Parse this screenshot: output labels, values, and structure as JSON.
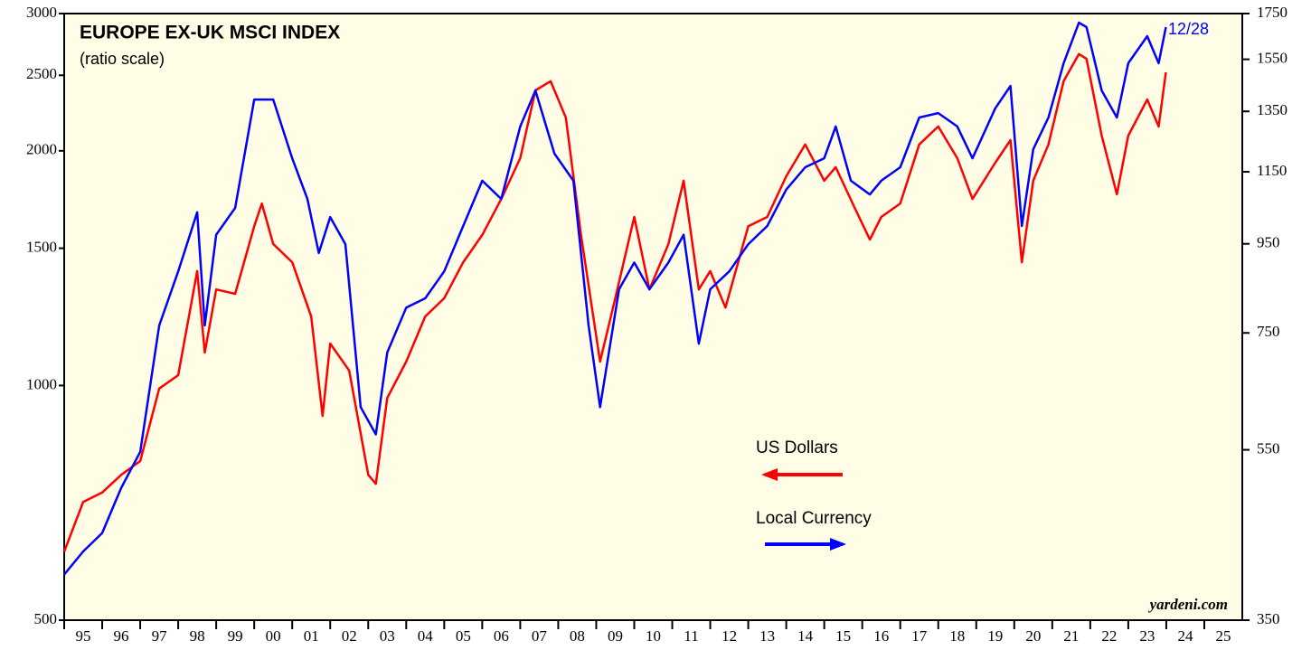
{
  "chart_data": {
    "type": "line",
    "title": "EUROPE EX-UK MSCI INDEX",
    "subtitle": "(ratio scale)",
    "annotation": "12/28",
    "source": "yardeni.com",
    "log_scale": true,
    "background": "#fffde6",
    "xlim": [
      1995,
      2026
    ],
    "xticks": [
      {
        "value": 1995,
        "label": "95"
      },
      {
        "value": 1996,
        "label": "96"
      },
      {
        "value": 1997,
        "label": "97"
      },
      {
        "value": 1998,
        "label": "98"
      },
      {
        "value": 1999,
        "label": "99"
      },
      {
        "value": 2000,
        "label": "00"
      },
      {
        "value": 2001,
        "label": "01"
      },
      {
        "value": 2002,
        "label": "02"
      },
      {
        "value": 2003,
        "label": "03"
      },
      {
        "value": 2004,
        "label": "04"
      },
      {
        "value": 2005,
        "label": "05"
      },
      {
        "value": 2006,
        "label": "06"
      },
      {
        "value": 2007,
        "label": "07"
      },
      {
        "value": 2008,
        "label": "08"
      },
      {
        "value": 2009,
        "label": "09"
      },
      {
        "value": 2010,
        "label": "10"
      },
      {
        "value": 2011,
        "label": "11"
      },
      {
        "value": 2012,
        "label": "12"
      },
      {
        "value": 2013,
        "label": "13"
      },
      {
        "value": 2014,
        "label": "14"
      },
      {
        "value": 2015,
        "label": "15"
      },
      {
        "value": 2016,
        "label": "16"
      },
      {
        "value": 2017,
        "label": "17"
      },
      {
        "value": 2018,
        "label": "18"
      },
      {
        "value": 2019,
        "label": "19"
      },
      {
        "value": 2020,
        "label": "20"
      },
      {
        "value": 2021,
        "label": "21"
      },
      {
        "value": 2022,
        "label": "22"
      },
      {
        "value": 2023,
        "label": "23"
      },
      {
        "value": 2024,
        "label": "24"
      },
      {
        "value": 2025,
        "label": "25"
      }
    ],
    "ylim": [
      500,
      3000
    ],
    "yticks": [
      500,
      1000,
      1500,
      2000,
      2500,
      3000
    ],
    "y2lim": [
      350,
      1750
    ],
    "y2ticks": [
      350,
      550,
      750,
      950,
      1150,
      1350,
      1550,
      1750
    ],
    "series": [
      {
        "name": "US Dollars",
        "color": "#ff0000",
        "x": [
          1995.0,
          1995.5,
          1996.0,
          1996.5,
          1997.0,
          1997.5,
          1998.0,
          1998.5,
          1998.7,
          1999.0,
          1999.5,
          2000.0,
          2000.2,
          2000.5,
          2001.0,
          2001.5,
          2001.8,
          2002.0,
          2002.5,
          2003.0,
          2003.2,
          2003.5,
          2004.0,
          2004.5,
          2005.0,
          2005.5,
          2006.0,
          2006.5,
          2007.0,
          2007.4,
          2007.8,
          2008.2,
          2008.6,
          2009.1,
          2009.5,
          2010.0,
          2010.4,
          2010.9,
          2011.3,
          2011.7,
          2012.0,
          2012.4,
          2013.0,
          2013.5,
          2014.0,
          2014.5,
          2015.0,
          2015.3,
          2015.8,
          2016.2,
          2016.5,
          2017.0,
          2017.5,
          2018.0,
          2018.5,
          2018.9,
          2019.5,
          2019.9,
          2020.2,
          2020.5,
          2020.9,
          2021.3,
          2021.7,
          2021.9,
          2022.3,
          2022.7,
          2023.0,
          2023.5,
          2023.8,
          2023.99
        ],
        "values": [
          612,
          709,
          729,
          768,
          800,
          991,
          1031,
          1402,
          1102,
          1328,
          1311,
          1601,
          1712,
          1519,
          1439,
          1226,
          914,
          1132,
          1045,
          768,
          748,
          964,
          1073,
          1226,
          1294,
          1439,
          1560,
          1735,
          1957,
          2391,
          2457,
          2207,
          1560,
          1073,
          1294,
          1645,
          1328,
          1519,
          1831,
          1328,
          1402,
          1259,
          1601,
          1645,
          1855,
          2038,
          1831,
          1906,
          1690,
          1539,
          1645,
          1712,
          2038,
          2149,
          1957,
          1735,
          1931,
          2064,
          1439,
          1831,
          2038,
          2457,
          2662,
          2624,
          2092,
          1759,
          2092,
          2327,
          2149,
          2522
        ]
      },
      {
        "name": "Local Currency",
        "color": "#0000ff",
        "axis": "y2",
        "x": [
          1995.0,
          1995.5,
          1996.0,
          1996.5,
          1997.0,
          1997.5,
          1998.0,
          1998.5,
          1998.7,
          1999.0,
          1999.5,
          2000.0,
          2000.5,
          2001.0,
          2001.4,
          2001.7,
          2002.0,
          2002.4,
          2002.8,
          2003.2,
          2003.5,
          2004.0,
          2004.5,
          2005.0,
          2005.5,
          2006.0,
          2006.5,
          2007.0,
          2007.4,
          2007.9,
          2008.4,
          2008.8,
          2009.1,
          2009.6,
          2010.0,
          2010.4,
          2010.9,
          2011.3,
          2011.7,
          2012.0,
          2012.5,
          2013.0,
          2013.5,
          2014.0,
          2014.5,
          2015.0,
          2015.3,
          2015.7,
          2016.2,
          2016.5,
          2017.0,
          2017.5,
          2018.0,
          2018.5,
          2018.9,
          2019.5,
          2019.9,
          2020.2,
          2020.5,
          2020.9,
          2021.3,
          2021.7,
          2021.9,
          2022.3,
          2022.7,
          2023.0,
          2023.5,
          2023.8,
          2023.99
        ],
        "values": [
          395,
          420,
          441,
          497,
          547,
          765,
          883,
          1033,
          765,
          973,
          1045,
          1393,
          1393,
          1192,
          1070,
          927,
          1020,
          949,
          616,
          573,
          712,
          802,
          822,
          883,
          996,
          1123,
          1070,
          1297,
          1427,
          1207,
          1123,
          765,
          616,
          842,
          904,
          842,
          904,
          973,
          729,
          842,
          883,
          949,
          996,
          1097,
          1164,
          1192,
          1297,
          1123,
          1083,
          1123,
          1164,
          1328,
          1344,
          1297,
          1192,
          1361,
          1444,
          996,
          1221,
          1328,
          1534,
          1708,
          1688,
          1427,
          1328,
          1534,
          1648,
          1534,
          1688
        ]
      }
    ]
  }
}
